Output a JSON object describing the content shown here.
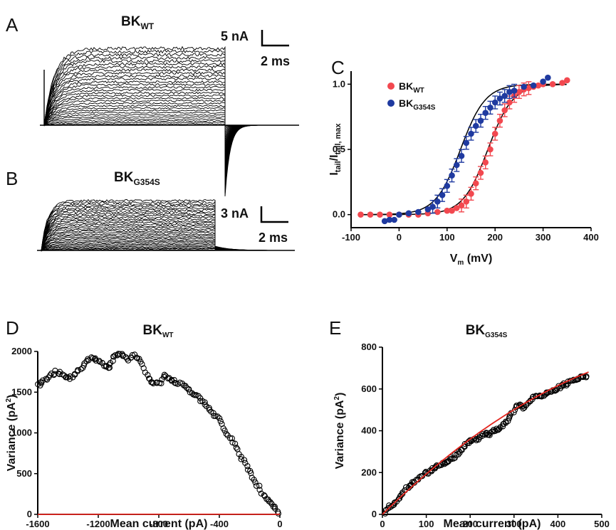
{
  "panels": {
    "A": {
      "label": "A",
      "title": "BK",
      "title_sub": "WT",
      "scale_current": "5 nA",
      "scale_time": "2 ms"
    },
    "B": {
      "label": "B",
      "title": "BK",
      "title_sub": "G354S",
      "scale_current": "3 nA",
      "scale_time": "2 ms"
    },
    "C": {
      "label": "C"
    },
    "D": {
      "label": "D"
    },
    "E": {
      "label": "E"
    }
  },
  "colors": {
    "wt": "#f2484f",
    "g354s": "#1f3aa0",
    "fit_d_e": "#e3261f",
    "trace": "#000000"
  },
  "chart_data": [
    {
      "panel": "C",
      "type": "scatter",
      "xlabel": "V",
      "xlabel_sub": "m",
      "xlabel_unit": " (mV)",
      "ylabel": "I",
      "ylabel_sub1": "tail",
      "ylabel_mid": "/I",
      "ylabel_sub2": "tail, max",
      "xlim": [
        -100,
        400
      ],
      "ylim": [
        -0.1,
        1.1
      ],
      "xticks": [
        "-100",
        "0",
        "100",
        "200",
        "300",
        "400"
      ],
      "yticks": [
        "0.0",
        "0.5",
        "1.0"
      ],
      "legend_position": "top-left",
      "series": [
        {
          "name": "BK",
          "name_sub": "WT",
          "color": "#f2484f",
          "fit_v_half": 185,
          "fit_slope": 26,
          "x": [
            -80,
            -60,
            -40,
            -20,
            0,
            20,
            40,
            60,
            80,
            100,
            110,
            120,
            130,
            140,
            150,
            160,
            170,
            180,
            190,
            200,
            210,
            220,
            230,
            240,
            250,
            260,
            270,
            280,
            290,
            300,
            320,
            340,
            350
          ],
          "y": [
            0,
            0,
            0,
            0,
            0,
            0,
            0,
            0.01,
            0.02,
            0.03,
            0.03,
            0.05,
            0.07,
            0.1,
            0.16,
            0.24,
            0.32,
            0.4,
            0.5,
            0.62,
            0.72,
            0.8,
            0.86,
            0.91,
            0.94,
            0.96,
            0.97,
            0.98,
            0.99,
            1.0,
            1.0,
            1.01,
            1.03
          ]
        },
        {
          "name": "BK",
          "name_sub": "G354S",
          "color": "#1f3aa0",
          "fit_v_half": 128,
          "fit_slope": 26,
          "x": [
            -30,
            -20,
            -10,
            0,
            20,
            40,
            60,
            70,
            80,
            90,
            100,
            110,
            120,
            130,
            140,
            150,
            160,
            170,
            180,
            190,
            200,
            210,
            220,
            230,
            240,
            260,
            280,
            300,
            310
          ],
          "y": [
            -0.05,
            -0.04,
            -0.04,
            0.0,
            0.01,
            0.02,
            0.04,
            0.06,
            0.1,
            0.15,
            0.22,
            0.3,
            0.38,
            0.45,
            0.55,
            0.62,
            0.68,
            0.72,
            0.78,
            0.82,
            0.86,
            0.89,
            0.91,
            0.94,
            0.95,
            0.98,
            0.99,
            1.02,
            1.05
          ]
        }
      ]
    },
    {
      "panel": "D",
      "type": "scatter",
      "title": "BK",
      "title_sub": "WT",
      "xlabel": "Mean current (pA)",
      "ylabel": "Variance (pA",
      "ylabel_sup": "2",
      "ylabel_end": ")",
      "xlim": [
        -1600,
        0
      ],
      "ylim": [
        0,
        2000
      ],
      "xticks": [
        "-1600",
        "-1200",
        "-800",
        "-400",
        "0"
      ],
      "yticks": [
        "0",
        "500",
        "1000",
        "1500",
        "2000"
      ],
      "fit": {
        "i": 0.00292,
        "N": 2.2e-06
      },
      "x": [
        -1600,
        -1560,
        -1520,
        -1480,
        -1440,
        -1400,
        -1360,
        -1320,
        -1280,
        -1240,
        -1200,
        -1160,
        -1130,
        -1100,
        -1070,
        -1040,
        -1000,
        -960,
        -920,
        -880,
        -840,
        -800,
        -760,
        -720,
        -680,
        -640,
        -600,
        -560,
        -520,
        -480,
        -440,
        -400,
        -360,
        -320,
        -280,
        -240,
        -200,
        -160,
        -120,
        -80,
        -40,
        -10
      ],
      "y": [
        1580,
        1640,
        1700,
        1750,
        1720,
        1670,
        1700,
        1780,
        1880,
        1930,
        1880,
        1830,
        1800,
        1920,
        1960,
        1950,
        1900,
        1960,
        1880,
        1700,
        1620,
        1600,
        1700,
        1650,
        1620,
        1580,
        1520,
        1470,
        1400,
        1330,
        1240,
        1170,
        1020,
        920,
        790,
        650,
        520,
        400,
        270,
        180,
        100,
        10
      ]
    },
    {
      "panel": "E",
      "type": "scatter",
      "title": "BK",
      "title_sub": "G354S",
      "xlabel": "Mean current (pA)",
      "ylabel": "Variance (pA",
      "ylabel_sup": "2",
      "ylabel_end": ")",
      "xlim": [
        0,
        500
      ],
      "ylim": [
        0,
        800
      ],
      "xticks": [
        "0",
        "100",
        "200",
        "300",
        "400",
        "500"
      ],
      "yticks": [
        "0",
        "200",
        "400",
        "600",
        "800"
      ],
      "fit": {
        "i": 2.06,
        "N": 0.0013
      },
      "x": [
        5,
        15,
        25,
        35,
        45,
        55,
        65,
        75,
        85,
        95,
        105,
        115,
        125,
        135,
        145,
        155,
        165,
        175,
        185,
        195,
        205,
        215,
        225,
        235,
        245,
        255,
        265,
        275,
        285,
        295,
        305,
        315,
        325,
        335,
        345,
        355,
        365,
        375,
        385,
        395,
        405,
        415,
        425,
        435,
        445,
        455,
        465
      ],
      "y": [
        10,
        35,
        50,
        70,
        100,
        125,
        140,
        155,
        175,
        195,
        200,
        215,
        230,
        240,
        250,
        265,
        275,
        295,
        320,
        345,
        350,
        360,
        375,
        385,
        380,
        400,
        410,
        430,
        445,
        480,
        520,
        520,
        510,
        540,
        560,
        570,
        570,
        580,
        590,
        600,
        610,
        620,
        630,
        640,
        650,
        655,
        660
      ]
    }
  ]
}
